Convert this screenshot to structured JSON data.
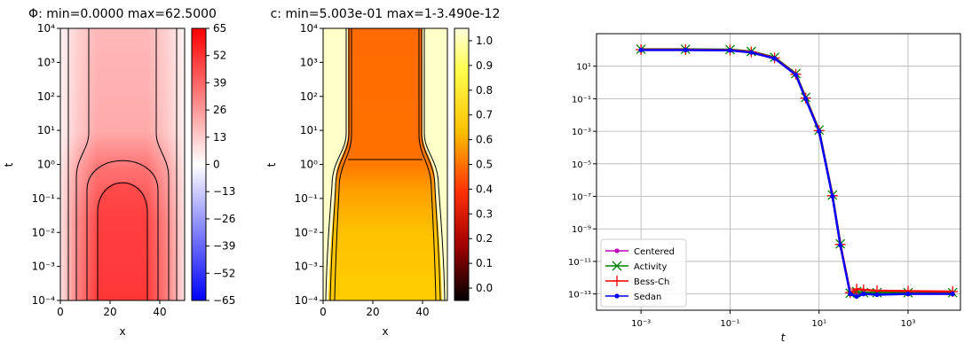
{
  "chart_data": [
    {
      "type": "heatmap",
      "title": "Φ: min=0.0000 max=62.5000",
      "xlabel": "x",
      "ylabel": "t",
      "xlim": [
        0,
        50
      ],
      "xticks": [
        "0",
        "20",
        "40"
      ],
      "yscale": "log",
      "ylim": [
        0.0001,
        10000
      ],
      "yticks": [
        "10⁻⁴",
        "10⁻³",
        "10⁻²",
        "10⁻¹",
        "10⁰",
        "10¹",
        "10²",
        "10³",
        "10⁴"
      ],
      "colormap": "bwr",
      "colors": {
        "negative": "#0000ff",
        "zero": "#ffffff",
        "positive": "#ff0000"
      },
      "colorbar": {
        "range": [
          -65,
          65
        ],
        "ticks": [
          "65",
          "52",
          "39",
          "26",
          "13",
          "0",
          "−13",
          "−26",
          "−39",
          "−52",
          "−65"
        ]
      }
    },
    {
      "type": "heatmap",
      "title": "c: min=5.003e-01 max=1-3.490e-12",
      "xlabel": "x",
      "ylabel": "t",
      "xlim": [
        0,
        50
      ],
      "xticks": [
        "0",
        "20",
        "40"
      ],
      "yscale": "log",
      "ylim": [
        0.0001,
        10000
      ],
      "yticks": [
        "10⁻⁴",
        "10⁻³",
        "10⁻²",
        "10⁻¹",
        "10⁰",
        "10¹",
        "10²",
        "10³",
        "10⁴"
      ],
      "colormap": "hot",
      "colors": {
        "low": "#000000",
        "mid": "#ff3300",
        "high": "#ffffdd"
      },
      "colorbar": {
        "range": [
          -0.05,
          1.05
        ],
        "ticks": [
          "1.0",
          "0.9",
          "0.8",
          "0.7",
          "0.6",
          "0.5",
          "0.4",
          "0.3",
          "0.2",
          "0.1",
          "0.0"
        ]
      }
    },
    {
      "type": "line",
      "xlabel": "t",
      "ylabel": "",
      "xscale": "log",
      "yscale": "log",
      "xlim": [
        0.0001,
        15000
      ],
      "ylim": [
        1e-14,
        1000
      ],
      "xticks": [
        "10⁻³",
        "10⁻¹",
        "10¹",
        "10³"
      ],
      "yticks": [
        "10¹",
        "10⁻¹",
        "10⁻³",
        "10⁻⁵",
        "10⁻⁷",
        "10⁻⁹",
        "10⁻¹¹",
        "10⁻¹³"
      ],
      "grid": true,
      "legend": "lower-left",
      "series": [
        {
          "name": "Centered",
          "color": "#bf00bf",
          "marker": "dot",
          "x": [
            0.001,
            0.01,
            0.1,
            0.3,
            1,
            3,
            5,
            10,
            20,
            30,
            50,
            70,
            100,
            200,
            1000,
            10000
          ],
          "y": [
            100,
            100,
            95,
            70,
            30,
            3,
            0.1,
            0.001,
            1e-07,
            1e-10,
            1e-13,
            1.2e-13,
            1e-13,
            1e-13,
            1e-13,
            1e-13
          ]
        },
        {
          "name": "Activity",
          "color": "#008000",
          "marker": "x",
          "x": [
            0.001,
            0.01,
            0.1,
            0.3,
            1,
            3,
            5,
            10,
            20,
            30,
            50,
            70,
            100,
            200,
            1000,
            10000
          ],
          "y": [
            110,
            110,
            105,
            80,
            35,
            3.5,
            0.12,
            0.0012,
            1.2e-07,
            1.2e-10,
            1.1e-13,
            1.4e-13,
            1.2e-13,
            1.2e-13,
            1.2e-13,
            1.2e-13
          ]
        },
        {
          "name": "Bess-Ch",
          "color": "#ff0000",
          "marker": "+",
          "x": [
            0.001,
            0.01,
            0.1,
            0.3,
            1,
            3,
            5,
            10,
            20,
            30,
            50,
            70,
            100,
            200,
            1000,
            10000
          ],
          "y": [
            105,
            105,
            100,
            75,
            32,
            3.2,
            0.11,
            0.0011,
            1.1e-07,
            1.1e-10,
            1.2e-13,
            2e-13,
            1.8e-13,
            1.6e-13,
            1.5e-13,
            1.4e-13
          ]
        },
        {
          "name": "Sedan",
          "color": "#0000ff",
          "marker": "dot",
          "x": [
            0.001,
            0.01,
            0.1,
            0.3,
            1,
            3,
            5,
            10,
            20,
            30,
            50,
            70,
            100,
            200,
            1000,
            10000
          ],
          "y": [
            100,
            100,
            95,
            70,
            30,
            3,
            0.1,
            0.001,
            1e-07,
            1e-10,
            1e-13,
            7e-14,
            1e-13,
            9e-14,
            1e-13,
            1e-13
          ]
        }
      ]
    }
  ]
}
